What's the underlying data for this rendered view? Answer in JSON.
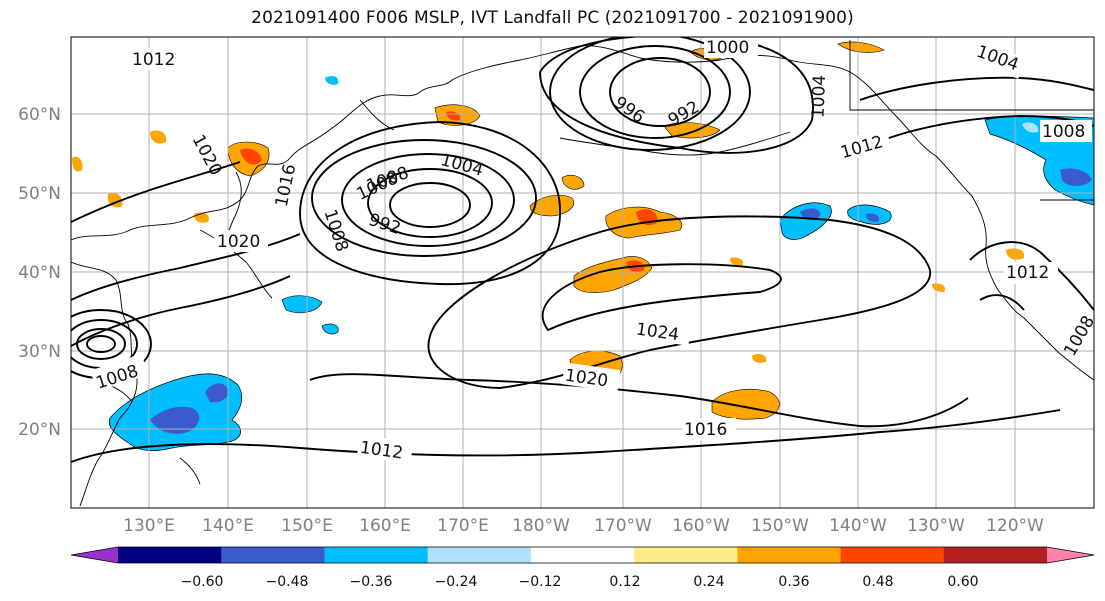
{
  "title": "2021091400 F006 MSLP, IVT Landfall PC (2021091700 - 2021091900)",
  "lat_ticks": [
    "60°N",
    "50°N",
    "40°N",
    "30°N",
    "20°N"
  ],
  "lon_ticks": [
    "130°E",
    "140°E",
    "150°E",
    "160°E",
    "170°E",
    "180°W",
    "170°W",
    "160°W",
    "150°W",
    "140°W",
    "130°W",
    "120°W"
  ],
  "isobar_labels": [
    "1012",
    "1000",
    "1004",
    "1020",
    "1016",
    "996",
    "992",
    "1004",
    "1012",
    "1008",
    "1008",
    "1004",
    "1008",
    "992",
    "1008",
    "1020",
    "1012",
    "1024",
    "1008",
    "1020",
    "1016",
    "1012",
    "1008"
  ],
  "colorbar": {
    "colors": [
      "#9932cc",
      "#000080",
      "#3a5acd",
      "#00bfff",
      "#b0e2ff",
      "#ffffff",
      "#ffec8b",
      "#ffa500",
      "#ff4500",
      "#b22222",
      "#ff82ab"
    ],
    "tick_labels": [
      "−0.60",
      "−0.48",
      "−0.36",
      "−0.24",
      "−0.12",
      "0.12",
      "0.24",
      "0.36",
      "0.48",
      "0.60"
    ]
  }
}
